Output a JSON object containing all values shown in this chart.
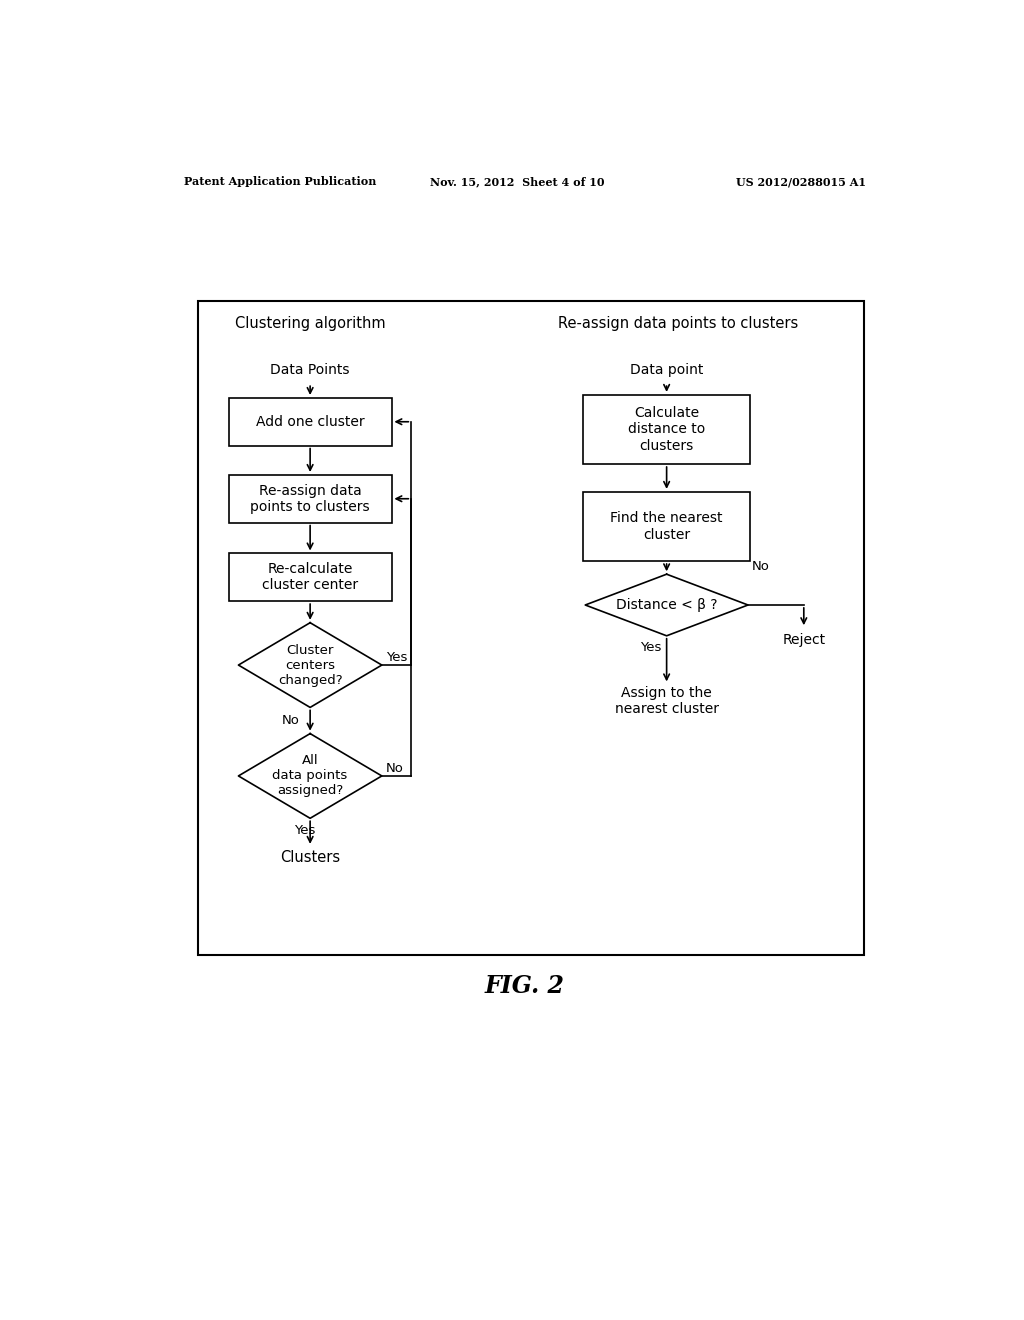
{
  "bg_color": "#ffffff",
  "header_left": "Patent Application Publication",
  "header_mid": "Nov. 15, 2012  Sheet 4 of 10",
  "header_right": "US 2012/0288015 A1",
  "fig_label": "FIG. 2",
  "left_title": "Clustering algorithm",
  "right_title": "Re-assign data points to clusters",
  "left_flow": {
    "data_points_label": "Data Points",
    "box1": "Add one cluster",
    "box2": "Re-assign data\npoints to clusters",
    "box3": "Re-calculate\ncluster center",
    "diamond1": "Cluster\ncenters\nchanged?",
    "diamond1_yes": "Yes",
    "diamond1_no": "No",
    "diamond2": "All\ndata points\nassigned?",
    "diamond2_yes": "Yes",
    "diamond2_no": "No",
    "clusters_label": "Clusters"
  },
  "right_flow": {
    "data_point_label": "Data point",
    "box1": "Calculate\ndistance to\nclusters",
    "box2": "Find the nearest\ncluster",
    "diamond1": "Distance < β ?",
    "diamond1_yes": "Yes",
    "diamond1_no": "No",
    "reject_label": "Reject",
    "assign_label": "Assign to the\nnearest cluster"
  }
}
